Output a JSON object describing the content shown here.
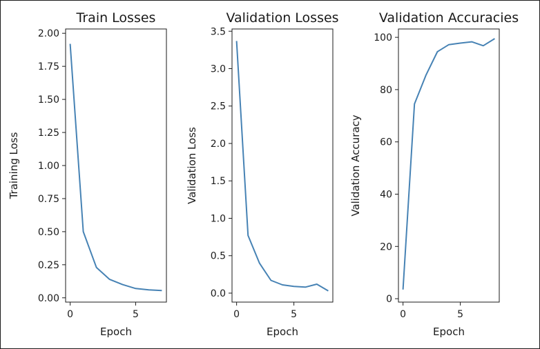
{
  "chart_data": [
    {
      "type": "line",
      "title": "Train Losses",
      "xlabel": "Epoch",
      "ylabel": "Training Loss",
      "xlim": [
        -0.35,
        7.35
      ],
      "ylim": [
        -0.0325,
        2.0325
      ],
      "xticks": [
        0,
        5
      ],
      "xtick_labels": [
        "0",
        "5"
      ],
      "yticks": [
        0,
        0.25,
        0.5,
        0.75,
        1.0,
        1.25,
        1.5,
        1.75,
        2.0
      ],
      "ytick_labels": [
        "0.00",
        "0.25",
        "0.50",
        "0.75",
        "1.00",
        "1.25",
        "1.50",
        "1.75",
        "2.00"
      ],
      "x": [
        0,
        1,
        2,
        3,
        4,
        5,
        6,
        7
      ],
      "y": [
        1.92,
        0.5,
        0.23,
        0.14,
        0.1,
        0.07,
        0.06,
        0.055
      ],
      "color": "#4682b4",
      "grid": false,
      "legend": false
    },
    {
      "type": "line",
      "title": "Validation Losses",
      "xlabel": "Epoch",
      "ylabel": "Validation Loss",
      "xlim": [
        -0.4,
        8.4
      ],
      "ylim": [
        -0.12,
        3.53
      ],
      "xticks": [
        0,
        5
      ],
      "xtick_labels": [
        "0",
        "5"
      ],
      "yticks": [
        0,
        0.5,
        1.0,
        1.5,
        2.0,
        2.5,
        3.0,
        3.5
      ],
      "ytick_labels": [
        "0.0",
        "0.5",
        "1.0",
        "1.5",
        "2.0",
        "2.5",
        "3.0",
        "3.5"
      ],
      "x": [
        0,
        1,
        2,
        3,
        4,
        5,
        6,
        7,
        8
      ],
      "y": [
        3.37,
        0.77,
        0.4,
        0.17,
        0.11,
        0.09,
        0.08,
        0.12,
        0.03
      ],
      "color": "#4682b4",
      "grid": false,
      "legend": false
    },
    {
      "type": "line",
      "title": "Validation Accuracies",
      "xlabel": "Epoch",
      "ylabel": "Validation Accuracy",
      "xlim": [
        -0.4,
        8.4
      ],
      "ylim": [
        -1.3,
        103.2
      ],
      "xticks": [
        0,
        5
      ],
      "xtick_labels": [
        "0",
        "5"
      ],
      "yticks": [
        0,
        20,
        40,
        60,
        80,
        100
      ],
      "ytick_labels": [
        "0",
        "20",
        "40",
        "60",
        "80",
        "100"
      ],
      "x": [
        0,
        1,
        2,
        3,
        4,
        5,
        6,
        7,
        8
      ],
      "y": [
        3.5,
        74.5,
        85.5,
        94.5,
        97.2,
        97.8,
        98.3,
        96.8,
        99.5
      ],
      "color": "#4682b4",
      "grid": false,
      "legend": false
    }
  ]
}
